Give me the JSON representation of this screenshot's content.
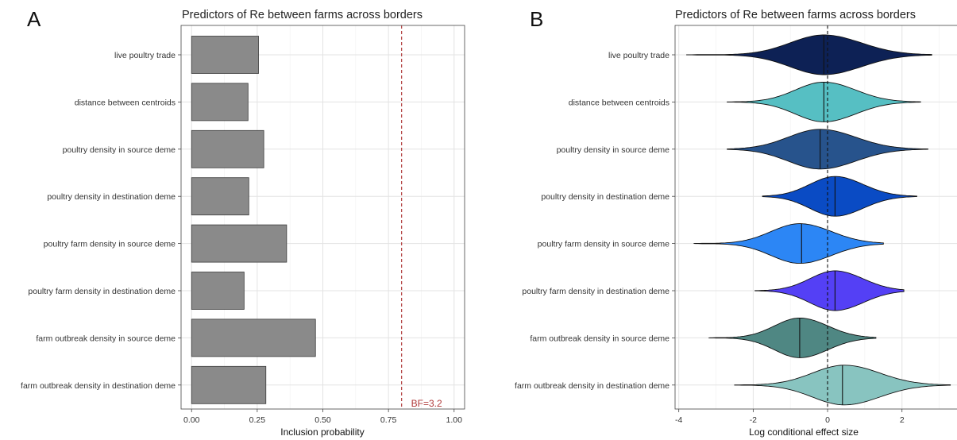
{
  "panels": {
    "a": {
      "letter": "A",
      "title": "Predictors of Re between farms across borders"
    },
    "b": {
      "letter": "B",
      "title": "Predictors of Re between farms across borders"
    }
  },
  "colors": {
    "bar_fill": "#8a8a8a",
    "bar_stroke": "#3a3a3a",
    "grid_major": "#e3e3e3",
    "grid_minor": "#f2f2f2",
    "threshold": "#b03a3a",
    "axis_text": "#333333"
  },
  "chart_data": [
    {
      "type": "bar",
      "orientation": "horizontal",
      "title": "Predictors of Re between farms across borders",
      "xlabel": "Inclusion probability",
      "ylabel": "",
      "xlim": [
        -0.04,
        1.04
      ],
      "xticks": [
        0.0,
        0.25,
        0.5,
        0.75,
        1.0
      ],
      "xtick_labels": [
        "0.00",
        "0.25",
        "0.50",
        "0.75",
        "1.00"
      ],
      "grid": true,
      "categories": [
        "live poultry trade",
        "distance between centroids",
        "poultry density in source deme",
        "poultry density in destination deme",
        "poultry farm density in source deme",
        "poultry farm density in destination deme",
        "farm outbreak density in source deme",
        "farm outbreak density in destination deme"
      ],
      "values": [
        0.255,
        0.215,
        0.275,
        0.218,
        0.362,
        0.2,
        0.472,
        0.283
      ],
      "threshold": {
        "value": 0.8,
        "label": "BF=3.2"
      }
    },
    {
      "type": "violin",
      "orientation": "horizontal",
      "title": "Predictors of Re between farms across borders",
      "xlabel": "Log conditional effect size",
      "ylabel": "",
      "xlim": [
        -4.1,
        3.5
      ],
      "xticks": [
        -4,
        -2,
        0,
        2
      ],
      "xtick_labels": [
        "-4",
        "-2",
        "0",
        "2"
      ],
      "grid": true,
      "reference_line": 0,
      "categories": [
        "live poultry trade",
        "distance between centroids",
        "poultry density in source deme",
        "poultry density in destination deme",
        "poultry farm density in source deme",
        "poultry farm density in destination deme",
        "farm outbreak density in source deme",
        "farm outbreak density in destination deme"
      ],
      "series": [
        {
          "min": -3.8,
          "max": 2.8,
          "median": -0.1,
          "mode": -0.1,
          "spread": 1.0,
          "color": "#0d2155"
        },
        {
          "min": -2.7,
          "max": 2.5,
          "median": -0.1,
          "mode": -0.1,
          "spread": 0.85,
          "color": "#56bfc3"
        },
        {
          "min": -2.7,
          "max": 2.7,
          "median": -0.2,
          "mode": -0.2,
          "spread": 0.95,
          "color": "#27538c"
        },
        {
          "min": -1.75,
          "max": 2.4,
          "median": 0.2,
          "mode": 0.2,
          "spread": 0.75,
          "color": "#0a4bc4"
        },
        {
          "min": -3.6,
          "max": 1.5,
          "median": -0.7,
          "mode": -0.75,
          "spread": 0.85,
          "color": "#2c86f5"
        },
        {
          "min": -1.95,
          "max": 2.05,
          "median": 0.2,
          "mode": 0.2,
          "spread": 0.75,
          "color": "#5440f5"
        },
        {
          "min": -3.2,
          "max": 1.3,
          "median": -0.75,
          "mode": -0.75,
          "spread": 0.75,
          "color": "#4f8783"
        },
        {
          "min": -2.5,
          "max": 3.3,
          "median": 0.4,
          "mode": 0.45,
          "spread": 0.95,
          "color": "#88c4c0"
        }
      ]
    }
  ]
}
